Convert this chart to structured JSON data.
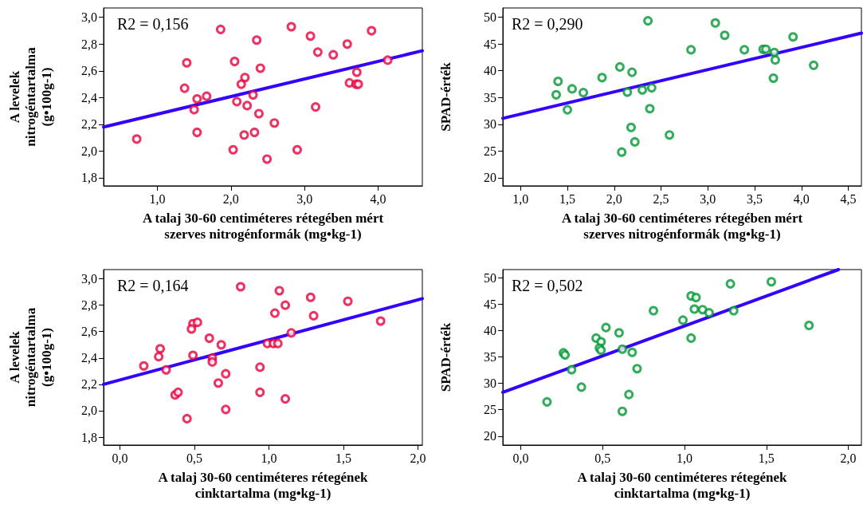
{
  "chart_data": [
    {
      "type": "scatter",
      "xlabel": "A talaj 30-60 centiméteres rétegében mért\nszerves nitrogénformák (mg•kg-1)",
      "ylabel": "A levelek\nnitrogéntartalma\n(g•100g-1)",
      "annotations": [
        "R2 = 0,156"
      ],
      "xlim": [
        0.27,
        4.6
      ],
      "xticks": [
        {
          "value": 1,
          "label": "1,0"
        },
        {
          "value": 2,
          "label": "2,0"
        },
        {
          "value": 3,
          "label": "3,0"
        },
        {
          "value": 4,
          "label": "4,0"
        }
      ],
      "ylim": [
        1.74,
        3.07
      ],
      "yticks": [
        {
          "value": 1.8,
          "label": "1,8"
        },
        {
          "value": 2,
          "label": "2,0"
        },
        {
          "value": 2.2,
          "label": "2,2"
        },
        {
          "value": 2.4,
          "label": "2,4"
        },
        {
          "value": 2.6,
          "label": "2,6"
        },
        {
          "value": 2.8,
          "label": "2,8"
        },
        {
          "value": 3,
          "label": "3,0"
        }
      ],
      "series": [
        {
          "marker": "circle",
          "color": "#e8003d",
          "x": [
            0.72,
            1.86,
            1.4,
            1.37,
            1.54,
            1.67,
            1.5,
            1.54,
            2.05,
            2.19,
            2.14,
            2.3,
            2.08,
            2.22,
            2.38,
            2.35,
            2.4,
            2.18,
            2.32,
            2.03,
            2.59,
            2.49,
            2.82,
            2.9,
            3.08,
            3.18,
            3.15,
            3.39,
            3.58,
            3.91,
            3.61,
            3.71,
            3.7,
            3.73,
            4.13
          ],
          "values": [
            2.09,
            2.91,
            2.66,
            2.47,
            2.39,
            2.41,
            2.31,
            2.14,
            2.67,
            2.55,
            2.5,
            2.42,
            2.37,
            2.34,
            2.28,
            2.83,
            2.62,
            2.12,
            2.14,
            2.01,
            2.21,
            1.94,
            2.93,
            2.01,
            2.86,
            2.74,
            2.33,
            2.72,
            2.8,
            2.9,
            2.51,
            2.59,
            2.5,
            2.5,
            2.68
          ]
        },
        {
          "type": "line",
          "color": "#3300ff",
          "x": [
            0.27,
            4.6
          ],
          "values": [
            2.18,
            2.75
          ]
        }
      ]
    },
    {
      "type": "scatter",
      "xlabel": "A talaj 30-60 centiméteres rétegében mért\nszerves nitrogénformák (mg•kg-1)",
      "ylabel": "SPAD-érték",
      "annotations": [
        "R2 = 0,290"
      ],
      "xlim": [
        0.81,
        4.64
      ],
      "xticks": [
        {
          "value": 1,
          "label": "1,0"
        },
        {
          "value": 1.5,
          "label": "1,5"
        },
        {
          "value": 2,
          "label": "2,0"
        },
        {
          "value": 2.5,
          "label": "2,5"
        },
        {
          "value": 3,
          "label": "3,0"
        },
        {
          "value": 3.5,
          "label": "3,5"
        },
        {
          "value": 4,
          "label": "4,0"
        },
        {
          "value": 4.5,
          "label": "4,5"
        }
      ],
      "ylim": [
        18.5,
        51.7
      ],
      "yticks": [
        20,
        25,
        30,
        35,
        40,
        45,
        50
      ],
      "series": [
        {
          "marker": "circle",
          "color": "#009933",
          "x": [
            2.36,
            3.08,
            3.18,
            3.91,
            2.82,
            3.39,
            3.59,
            3.62,
            3.71,
            3.72,
            4.13,
            3.7,
            2.06,
            2.19,
            1.87,
            1.4,
            1.38,
            1.55,
            1.67,
            1.5,
            2.14,
            2.3,
            2.4,
            2.38,
            2.18,
            2.22,
            2.08,
            2.59
          ],
          "values": [
            49.3,
            48.9,
            46.6,
            46.3,
            43.9,
            43.9,
            44.0,
            44.0,
            43.4,
            42.0,
            41.0,
            38.6,
            40.7,
            39.7,
            38.7,
            38.0,
            35.5,
            36.6,
            35.9,
            32.7,
            36.0,
            36.4,
            36.8,
            32.9,
            29.4,
            26.7,
            24.8,
            28.0
          ]
        },
        {
          "type": "line",
          "color": "#3300ff",
          "x": [
            0.81,
            4.64
          ],
          "values": [
            31.1,
            47.0
          ]
        }
      ]
    },
    {
      "type": "scatter",
      "xlabel": "A talaj 30-60 centiméteres rétegének\ncinktartalma (mg•kg-1)",
      "ylabel": "A levelek\nnitrogéntartalma\n(g•100g-1)",
      "annotations": [
        "R2 = 0,164"
      ],
      "xlim": [
        -0.11,
        2.03
      ],
      "xticks": [
        {
          "value": 0,
          "label": "0,0"
        },
        {
          "value": 0.5,
          "label": "0,5"
        },
        {
          "value": 1,
          "label": "1,0"
        },
        {
          "value": 1.5,
          "label": "1,5"
        },
        {
          "value": 2,
          "label": "2,0"
        }
      ],
      "ylim": [
        1.74,
        3.07
      ],
      "yticks": [
        {
          "value": 1.8,
          "label": "1,8"
        },
        {
          "value": 2,
          "label": "2,0"
        },
        {
          "value": 2.2,
          "label": "2,2"
        },
        {
          "value": 2.4,
          "label": "2,4"
        },
        {
          "value": 2.6,
          "label": "2,6"
        },
        {
          "value": 2.8,
          "label": "2,8"
        },
        {
          "value": 3,
          "label": "3,0"
        }
      ],
      "series": [
        {
          "marker": "circle",
          "color": "#e8003d",
          "x": [
            0.81,
            1.07,
            1.28,
            1.53,
            1.11,
            1.04,
            1.3,
            1.75,
            1.15,
            0.49,
            0.52,
            0.48,
            0.6,
            0.68,
            0.99,
            1.03,
            1.06,
            0.27,
            0.26,
            0.49,
            0.62,
            0.62,
            0.16,
            0.31,
            0.94,
            0.71,
            0.66,
            0.37,
            0.39,
            0.94,
            1.11,
            0.71,
            0.45
          ],
          "values": [
            2.94,
            2.91,
            2.86,
            2.83,
            2.8,
            2.74,
            2.72,
            2.68,
            2.59,
            2.66,
            2.67,
            2.62,
            2.55,
            2.5,
            2.51,
            2.51,
            2.51,
            2.47,
            2.41,
            2.42,
            2.4,
            2.37,
            2.34,
            2.31,
            2.33,
            2.28,
            2.21,
            2.12,
            2.14,
            2.14,
            2.09,
            2.01,
            1.94
          ]
        },
        {
          "type": "line",
          "color": "#3300ff",
          "x": [
            -0.11,
            2.03
          ],
          "values": [
            2.2,
            2.85
          ]
        }
      ]
    },
    {
      "type": "scatter",
      "xlabel": "A talaj 30-60 centiméteres rétegének\ncinktartalma (mg•kg-1)",
      "ylabel": "SPAD-érték",
      "annotations": [
        "R2 = 0,502"
      ],
      "xlim": [
        -0.11,
        2.08
      ],
      "xticks": [
        {
          "value": 0,
          "label": "0,0"
        },
        {
          "value": 0.5,
          "label": "0,5"
        },
        {
          "value": 1,
          "label": "1,0"
        },
        {
          "value": 1.5,
          "label": "1,5"
        },
        {
          "value": 2,
          "label": "2,0"
        }
      ],
      "ylim": [
        18.3,
        51.6
      ],
      "yticks": [
        20,
        25,
        30,
        35,
        40,
        45,
        50
      ],
      "series": [
        {
          "marker": "circle",
          "color": "#009933",
          "x": [
            1.53,
            1.28,
            1.04,
            1.07,
            1.06,
            1.11,
            1.15,
            1.3,
            0.81,
            0.99,
            1.76,
            1.04,
            0.52,
            0.6,
            0.46,
            0.49,
            0.48,
            0.49,
            0.62,
            0.68,
            0.26,
            0.27,
            0.31,
            0.71,
            0.37,
            0.66,
            0.16,
            0.62
          ],
          "values": [
            49.3,
            48.9,
            46.6,
            46.3,
            44.1,
            44.0,
            43.4,
            43.8,
            43.8,
            42.0,
            41.0,
            38.6,
            40.6,
            39.6,
            38.6,
            37.9,
            36.7,
            36.3,
            36.5,
            35.9,
            35.8,
            35.4,
            32.6,
            32.8,
            29.3,
            27.9,
            26.5,
            24.7
          ]
        },
        {
          "type": "line",
          "color": "#3300ff",
          "x": [
            -0.11,
            1.94
          ],
          "values": [
            28.3,
            51.6
          ]
        }
      ]
    }
  ]
}
